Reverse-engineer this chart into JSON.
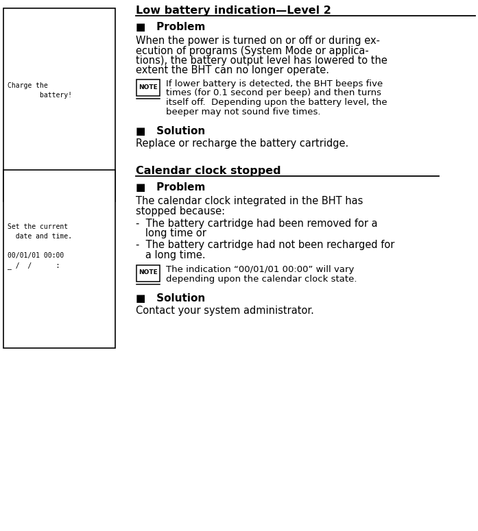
{
  "title1": "Low battery indication—Level 2",
  "title2": "Calendar clock stopped",
  "prob_header": "■   Problem",
  "sol_header": "■   Solution",
  "s1_prob_lines": [
    "When the power is turned on or off or during ex-",
    "ecution of programs (System Mode or applica-",
    "tions), the battery output level has lowered to the",
    "extent the BHT can no longer operate."
  ],
  "s1_note_lines": [
    "If lower battery is detected, the BHT beeps five",
    "times (for 0.1 second per beep) and then turns",
    "itself off.  Depending upon the battery level, the",
    "beeper may not sound five times."
  ],
  "s1_sol_line": "Replace or recharge the battery cartridge.",
  "s2_prob_lines": [
    "The calendar clock integrated in the BHT has",
    "stopped because:"
  ],
  "s2_bullet1_lines": [
    "-  The battery cartridge had been removed for a",
    "   long time or"
  ],
  "s2_bullet2_lines": [
    "-  The battery cartridge had not been recharged for",
    "   a long time."
  ],
  "s2_note_lines": [
    "The indication “00/01/01 00:00” will vary",
    "depending upon the calendar clock state."
  ],
  "s2_sol_line": "Contact your system administrator.",
  "box1_text": [
    "Charge the",
    "        battery!"
  ],
  "box2_text": [
    "Set the current",
    "  date and time.",
    "",
    "00/01/01 00:00",
    "_ /  /      :"
  ],
  "bg_color": "#ffffff"
}
